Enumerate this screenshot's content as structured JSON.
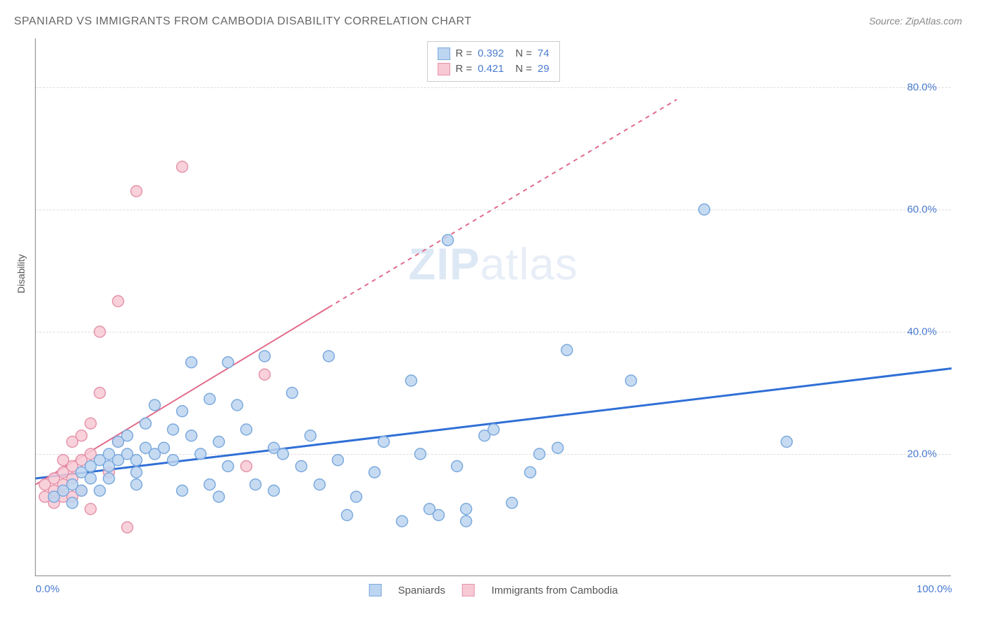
{
  "title": "SPANIARD VS IMMIGRANTS FROM CAMBODIA DISABILITY CORRELATION CHART",
  "source": "Source: ZipAtlas.com",
  "ylabel": "Disability",
  "watermark": {
    "part1": "ZIP",
    "part2": "atlas"
  },
  "xlim": [
    0,
    100
  ],
  "ylim": [
    0,
    88
  ],
  "xticks": [
    {
      "pos": 0,
      "label": "0.0%"
    },
    {
      "pos": 100,
      "label": "100.0%"
    }
  ],
  "yticks": [
    {
      "pos": 20,
      "label": "20.0%"
    },
    {
      "pos": 40,
      "label": "40.0%"
    },
    {
      "pos": 60,
      "label": "60.0%"
    },
    {
      "pos": 80,
      "label": "80.0%"
    }
  ],
  "grid_color": "#dddddd",
  "axis_color": "#888888",
  "background_color": "#ffffff",
  "tick_font_color": "#4a7bd0",
  "series": [
    {
      "name": "Spaniards",
      "color_fill": "#bcd5f0",
      "color_stroke": "#7ba9dd",
      "marker_radius": 8,
      "trend": {
        "x1": 0,
        "y1": 16,
        "x2": 100,
        "y2": 34,
        "color": "#2f6fd6",
        "width": 3,
        "dashed": false
      },
      "points": [
        [
          2,
          13
        ],
        [
          3,
          14
        ],
        [
          4,
          12
        ],
        [
          4,
          15
        ],
        [
          5,
          14
        ],
        [
          5,
          17
        ],
        [
          6,
          16
        ],
        [
          6,
          18
        ],
        [
          7,
          19
        ],
        [
          8,
          18
        ],
        [
          8,
          20
        ],
        [
          9,
          19
        ],
        [
          9,
          22
        ],
        [
          10,
          20
        ],
        [
          10,
          23
        ],
        [
          11,
          17
        ],
        [
          11,
          15
        ],
        [
          12,
          21
        ],
        [
          12,
          25
        ],
        [
          13,
          20
        ],
        [
          13,
          28
        ],
        [
          14,
          21
        ],
        [
          15,
          24
        ],
        [
          15,
          19
        ],
        [
          16,
          14
        ],
        [
          16,
          27
        ],
        [
          17,
          23
        ],
        [
          17,
          35
        ],
        [
          18,
          20
        ],
        [
          19,
          15
        ],
        [
          19,
          29
        ],
        [
          20,
          22
        ],
        [
          20,
          13
        ],
        [
          21,
          18
        ],
        [
          21,
          35
        ],
        [
          22,
          28
        ],
        [
          23,
          24
        ],
        [
          24,
          15
        ],
        [
          25,
          36
        ],
        [
          26,
          21
        ],
        [
          26,
          14
        ],
        [
          27,
          20
        ],
        [
          28,
          30
        ],
        [
          29,
          18
        ],
        [
          30,
          23
        ],
        [
          31,
          15
        ],
        [
          32,
          36
        ],
        [
          33,
          19
        ],
        [
          34,
          10
        ],
        [
          35,
          13
        ],
        [
          37,
          17
        ],
        [
          38,
          22
        ],
        [
          40,
          9
        ],
        [
          41,
          32
        ],
        [
          42,
          20
        ],
        [
          43,
          11
        ],
        [
          44,
          10
        ],
        [
          45,
          55
        ],
        [
          46,
          18
        ],
        [
          47,
          11
        ],
        [
          47,
          9
        ],
        [
          49,
          23
        ],
        [
          50,
          24
        ],
        [
          52,
          12
        ],
        [
          54,
          17
        ],
        [
          55,
          20
        ],
        [
          57,
          21
        ],
        [
          58,
          37
        ],
        [
          65,
          32
        ],
        [
          73,
          60
        ],
        [
          82,
          22
        ],
        [
          7,
          14
        ],
        [
          8,
          16
        ],
        [
          11,
          19
        ]
      ],
      "R": "0.392",
      "N": "74"
    },
    {
      "name": "Immigrants from Cambodia",
      "color_fill": "#f7c9d5",
      "color_stroke": "#e593ab",
      "marker_radius": 8,
      "trend": {
        "x1": 0,
        "y1": 15,
        "x2": 32,
        "y2": 44,
        "extend_x2": 70,
        "extend_y2": 78,
        "color": "#e26a8a",
        "width": 2,
        "dashed_after": 32
      },
      "points": [
        [
          1,
          13
        ],
        [
          1,
          15
        ],
        [
          2,
          12
        ],
        [
          2,
          14
        ],
        [
          2,
          16
        ],
        [
          3,
          13
        ],
        [
          3,
          15
        ],
        [
          3,
          17
        ],
        [
          3,
          19
        ],
        [
          4,
          13
        ],
        [
          4,
          16
        ],
        [
          4,
          18
        ],
        [
          4,
          22
        ],
        [
          5,
          14
        ],
        [
          5,
          19
        ],
        [
          5,
          23
        ],
        [
          6,
          11
        ],
        [
          6,
          20
        ],
        [
          6,
          25
        ],
        [
          7,
          30
        ],
        [
          7,
          40
        ],
        [
          8,
          17
        ],
        [
          9,
          22
        ],
        [
          9,
          45
        ],
        [
          10,
          8
        ],
        [
          11,
          63
        ],
        [
          16,
          67
        ],
        [
          23,
          18
        ],
        [
          25,
          33
        ]
      ],
      "R": "0.421",
      "N": "29"
    }
  ],
  "legend_bottom": [
    {
      "label": "Spaniards",
      "fill": "#bcd5f0",
      "stroke": "#7ba9dd"
    },
    {
      "label": "Immigrants from Cambodia",
      "fill": "#f7c9d5",
      "stroke": "#e593ab"
    }
  ]
}
